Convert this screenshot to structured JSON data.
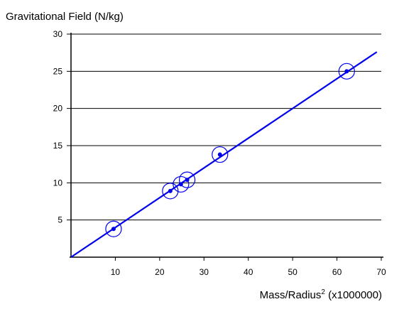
{
  "chart_data": {
    "type": "scatter",
    "ylabel": "Gravitational Field (N/kg)",
    "xlabel_main": "Mass/Radius",
    "xlabel_sup": "2",
    "xlabel_suffix": " (x1000000)",
    "xlim": [
      0,
      70
    ],
    "ylim": [
      0,
      30
    ],
    "x_ticks": [
      10,
      20,
      30,
      40,
      50,
      60,
      70
    ],
    "y_ticks": [
      5,
      10,
      15,
      20,
      25,
      30
    ],
    "grid": "horizontal",
    "points": [
      {
        "x": 9.6,
        "y": 3.8
      },
      {
        "x": 22.4,
        "y": 8.9
      },
      {
        "x": 24.8,
        "y": 9.8
      },
      {
        "x": 26.2,
        "y": 10.4
      },
      {
        "x": 33.6,
        "y": 13.8
      },
      {
        "x": 62.2,
        "y": 25.0
      }
    ],
    "trendline": {
      "x": [
        0,
        69
      ],
      "y": [
        0,
        27.6
      ]
    },
    "colors": {
      "series": "#0000ee",
      "axis": "#000000",
      "grid": "#000000"
    }
  }
}
